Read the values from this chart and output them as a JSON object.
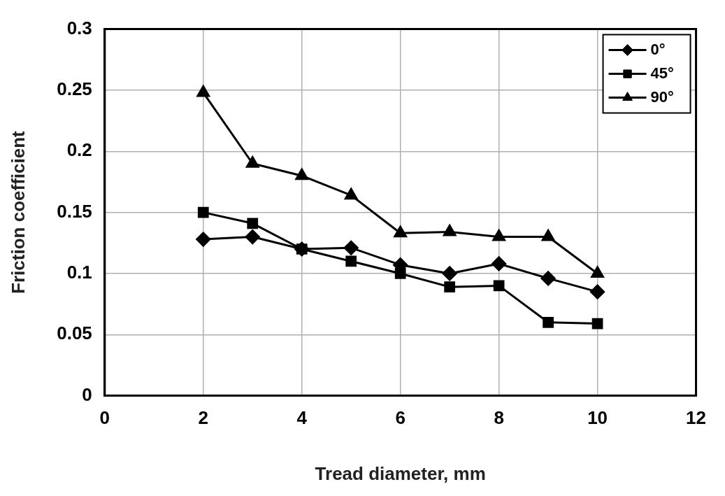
{
  "chart_data": {
    "type": "line",
    "xlabel": "Tread diameter, mm",
    "ylabel": "Friction coefficient",
    "x": [
      2,
      3,
      4,
      5,
      6,
      7,
      8,
      9,
      10
    ],
    "xlim": [
      0,
      12
    ],
    "xticks": [
      0,
      2,
      4,
      6,
      8,
      10,
      12
    ],
    "ylim": [
      0,
      0.3
    ],
    "yticks": [
      0,
      0.05,
      0.1,
      0.15,
      0.2,
      0.25,
      0.3
    ],
    "grid": true,
    "legend": "top right",
    "line_style": "solid",
    "series": [
      {
        "name": "0°",
        "color": "#000000",
        "marker": "diamond",
        "values": [
          0.128,
          0.13,
          0.12,
          0.121,
          0.107,
          0.1,
          0.108,
          0.096,
          0.085
        ]
      },
      {
        "name": "45°",
        "color": "#000000",
        "marker": "square",
        "values": [
          0.15,
          0.141,
          0.12,
          0.11,
          0.1,
          0.089,
          0.09,
          0.06,
          0.059
        ]
      },
      {
        "name": "90°",
        "color": "#000000",
        "marker": "triangle",
        "values": [
          0.248,
          0.19,
          0.18,
          0.164,
          0.133,
          0.134,
          0.13,
          0.13,
          0.1
        ]
      }
    ]
  }
}
